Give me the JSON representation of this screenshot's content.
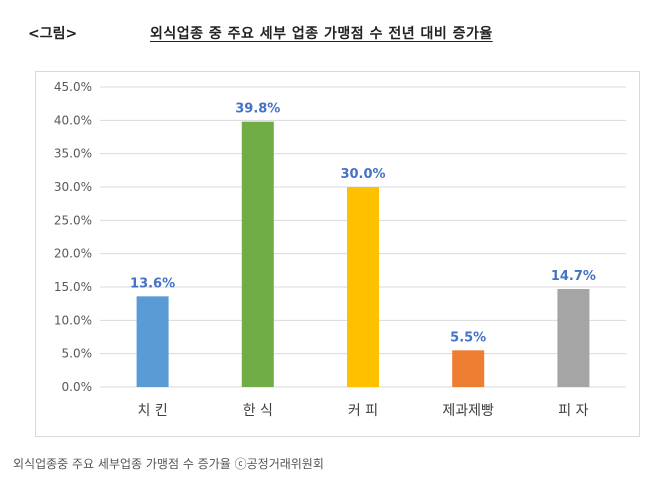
{
  "figure": {
    "label": "<그림>",
    "title": "외식업종 중 주요 세부 업종 가맹점 수 전년 대비 증가율"
  },
  "caption": "외식업종중 주요 세부업종 가맹점 수 증가율 ⓒ공정거래위원회",
  "chart_data": {
    "type": "bar",
    "title": "외식업종 중 주요 세부 업종 가맹점 수 전년 대비 증가율",
    "categories": [
      "치 킨",
      "한 식",
      "커 피",
      "제과제빵",
      "피 자"
    ],
    "values": [
      13.6,
      39.8,
      30.0,
      5.5,
      14.7
    ],
    "value_labels": [
      "13.6%",
      "39.8%",
      "30.0%",
      "5.5%",
      "14.7%"
    ],
    "bar_colors": [
      "#5B9BD5",
      "#70AD47",
      "#FFC000",
      "#ED7D31",
      "#A5A5A5"
    ],
    "data_label_color": "#4472C4",
    "yticks": [
      0,
      5,
      10,
      15,
      20,
      25,
      30,
      35,
      40,
      45
    ],
    "ytick_labels": [
      "0.0%",
      "5.0%",
      "10.0%",
      "15.0%",
      "20.0%",
      "25.0%",
      "30.0%",
      "35.0%",
      "40.0%",
      "45.0%"
    ],
    "ylim": [
      0,
      45
    ],
    "grid": true,
    "xlabel": "",
    "ylabel": ""
  }
}
